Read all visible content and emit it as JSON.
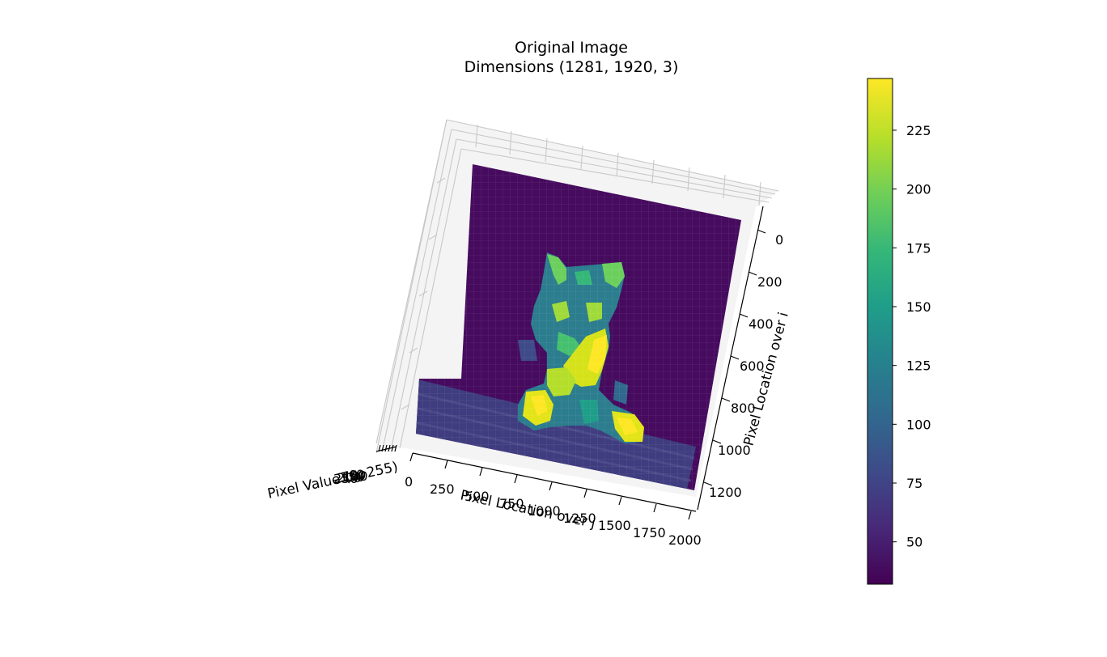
{
  "chart_data": {
    "type": "surface3d",
    "title_line1": "Original Image",
    "title_line2": "Dimensions (1281, 1920, 3)",
    "image_shape": [
      1281,
      1920,
      3
    ],
    "x_axis": {
      "label": "Pixel Location over j",
      "ticks": [
        "0",
        "250",
        "500",
        "750",
        "1000",
        "1250",
        "1500",
        "1750",
        "2000"
      ],
      "range": [
        0,
        2000
      ]
    },
    "y_axis": {
      "label": "Pixel Location over i",
      "ticks": [
        "0",
        "200",
        "400",
        "600",
        "800",
        "1000",
        "1200"
      ],
      "range": [
        0,
        1200
      ]
    },
    "z_axis": {
      "label": "Pixel Value (0, 255)",
      "ticks": [
        "0",
        "50",
        "100",
        "150",
        "200",
        "250"
      ],
      "range": [
        0,
        255
      ]
    },
    "colorbar": {
      "colormap": "viridis",
      "range": [
        32,
        247
      ],
      "ticks": [
        50,
        75,
        100,
        125,
        150,
        175,
        200,
        225
      ]
    },
    "grid": true,
    "colors": {
      "pane": "#f4f4f4",
      "grid": "#c8c8c8",
      "background_surface": "#460b5e",
      "floor_surface": "#3f3d7f"
    }
  }
}
